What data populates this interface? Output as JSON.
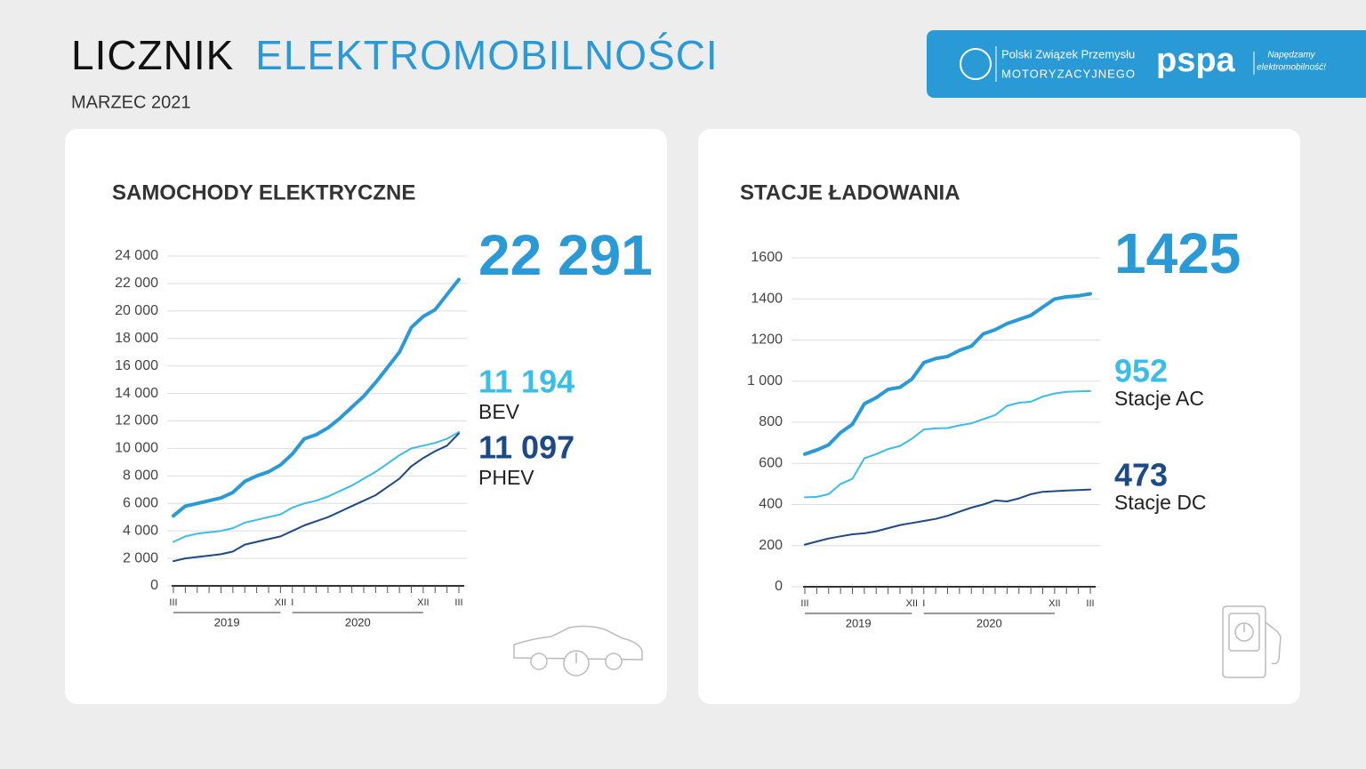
{
  "header": {
    "title_dark": "LICZNIK",
    "title_blue": "ELEKTROMOBILNOŚCI",
    "subtitle": "MARZEC 2021",
    "logo_pzpm_line1": "Polski Związek Przemysłu",
    "logo_pzpm_line2": "MOTORYZACYJNEGO",
    "logo_pspa": "pspa",
    "logo_pspa_slogan_1": "Napędzamy",
    "logo_pspa_slogan_2": "elektromobilność!"
  },
  "chart_data": [
    {
      "type": "line",
      "title": "SAMOCHODY ELEKTRYCZNE",
      "categories": [
        "III",
        null,
        null,
        null,
        null,
        null,
        null,
        null,
        null,
        "XII",
        "I",
        null,
        null,
        null,
        null,
        null,
        null,
        null,
        null,
        null,
        null,
        "XII",
        null,
        null,
        "III"
      ],
      "years": [
        "2019",
        "2020"
      ],
      "ylim": [
        0,
        24000
      ],
      "yticks": [
        0,
        {
          "value": 2000,
          "label": "2 000"
        },
        {
          "value": 4000,
          "label": "4 000"
        },
        {
          "value": 6000,
          "label": "6 000"
        },
        {
          "value": 8000,
          "label": "8 000"
        },
        {
          "value": 10000,
          "label": "10 000"
        },
        {
          "value": 12000,
          "label": "12 000"
        },
        {
          "value": 14000,
          "label": "14 000"
        },
        {
          "value": 16000,
          "label": "16 000"
        },
        {
          "value": 18000,
          "label": "18 000"
        },
        {
          "value": 20000,
          "label": "20 000"
        },
        {
          "value": 22000,
          "label": "22 000"
        },
        {
          "value": 24000,
          "label": "24 000"
        }
      ],
      "grid": true,
      "series": [
        {
          "color": "#2a9ad6",
          "values": [
            5100,
            5800,
            6000,
            6200,
            6400,
            6800,
            7600,
            8000,
            8300,
            8800,
            9600,
            10700,
            11000,
            11500,
            12200,
            13000,
            13800,
            14800,
            15900,
            17000,
            18800,
            19600,
            20100,
            21200,
            22291
          ],
          "value_labels": [
            null,
            null,
            null,
            null,
            null,
            null,
            null,
            null,
            null,
            null,
            null,
            null,
            null,
            null,
            null,
            null,
            null,
            null,
            null,
            null,
            null,
            null,
            null,
            null,
            "22 291"
          ]
        },
        {
          "name": "BEV",
          "color": "#3bbdea",
          "values": [
            3200,
            3600,
            3800,
            3900,
            4000,
            4200,
            4600,
            4800,
            5000,
            5200,
            5700,
            6000,
            6200,
            6500,
            6900,
            7300,
            7800,
            8300,
            8900,
            9500,
            10000,
            10200,
            10400,
            10700,
            11194
          ],
          "value_labels": [
            null,
            null,
            null,
            null,
            null,
            null,
            null,
            null,
            null,
            null,
            null,
            null,
            null,
            null,
            null,
            null,
            null,
            null,
            null,
            null,
            null,
            null,
            null,
            null,
            "11 194"
          ]
        },
        {
          "name": "PHEV",
          "color": "#1b4a87",
          "values": [
            1800,
            2000,
            2100,
            2200,
            2300,
            2500,
            3000,
            3200,
            3400,
            3600,
            4000,
            4400,
            4700,
            5000,
            5400,
            5800,
            6200,
            6600,
            7200,
            7800,
            8700,
            9300,
            9800,
            10200,
            11097
          ],
          "value_labels": [
            null,
            null,
            null,
            null,
            null,
            null,
            null,
            null,
            null,
            null,
            null,
            null,
            null,
            null,
            null,
            null,
            null,
            null,
            null,
            null,
            null,
            null,
            null,
            null,
            "11 097"
          ]
        }
      ]
    },
    {
      "type": "line",
      "title": "STACJE ŁADOWANIA",
      "categories": [
        "III",
        null,
        null,
        null,
        null,
        null,
        null,
        null,
        null,
        "XII",
        "I",
        null,
        null,
        null,
        null,
        null,
        null,
        null,
        null,
        null,
        null,
        "XII",
        null,
        null,
        "III"
      ],
      "years": [
        "2019",
        "2020"
      ],
      "ylim": [
        0,
        1600
      ],
      "yticks": [
        0,
        200,
        400,
        600,
        800,
        {
          "value": 1000,
          "label": "1 000"
        },
        1200,
        1400,
        1600
      ],
      "grid": true,
      "series": [
        {
          "color": "#2a9ad6",
          "values": [
            645,
            665,
            690,
            750,
            790,
            890,
            920,
            960,
            970,
            1010,
            1090,
            1110,
            1120,
            1150,
            1170,
            1230,
            1250,
            1280,
            1300,
            1320,
            1360,
            1400,
            1410,
            1415,
            1425
          ]
        },
        {
          "name": "Stacje AC",
          "color": "#3bbdea",
          "values": [
            435,
            437,
            450,
            500,
            525,
            625,
            645,
            670,
            685,
            720,
            765,
            770,
            772,
            785,
            795,
            815,
            835,
            880,
            895,
            900,
            925,
            940,
            948,
            950,
            952
          ]
        },
        {
          "name": "Stacje DC",
          "color": "#1b4a87",
          "values": [
            205,
            220,
            235,
            245,
            255,
            260,
            270,
            285,
            300,
            310,
            320,
            330,
            345,
            365,
            385,
            400,
            420,
            415,
            430,
            450,
            462,
            465,
            468,
            470,
            473
          ]
        }
      ]
    }
  ]
}
